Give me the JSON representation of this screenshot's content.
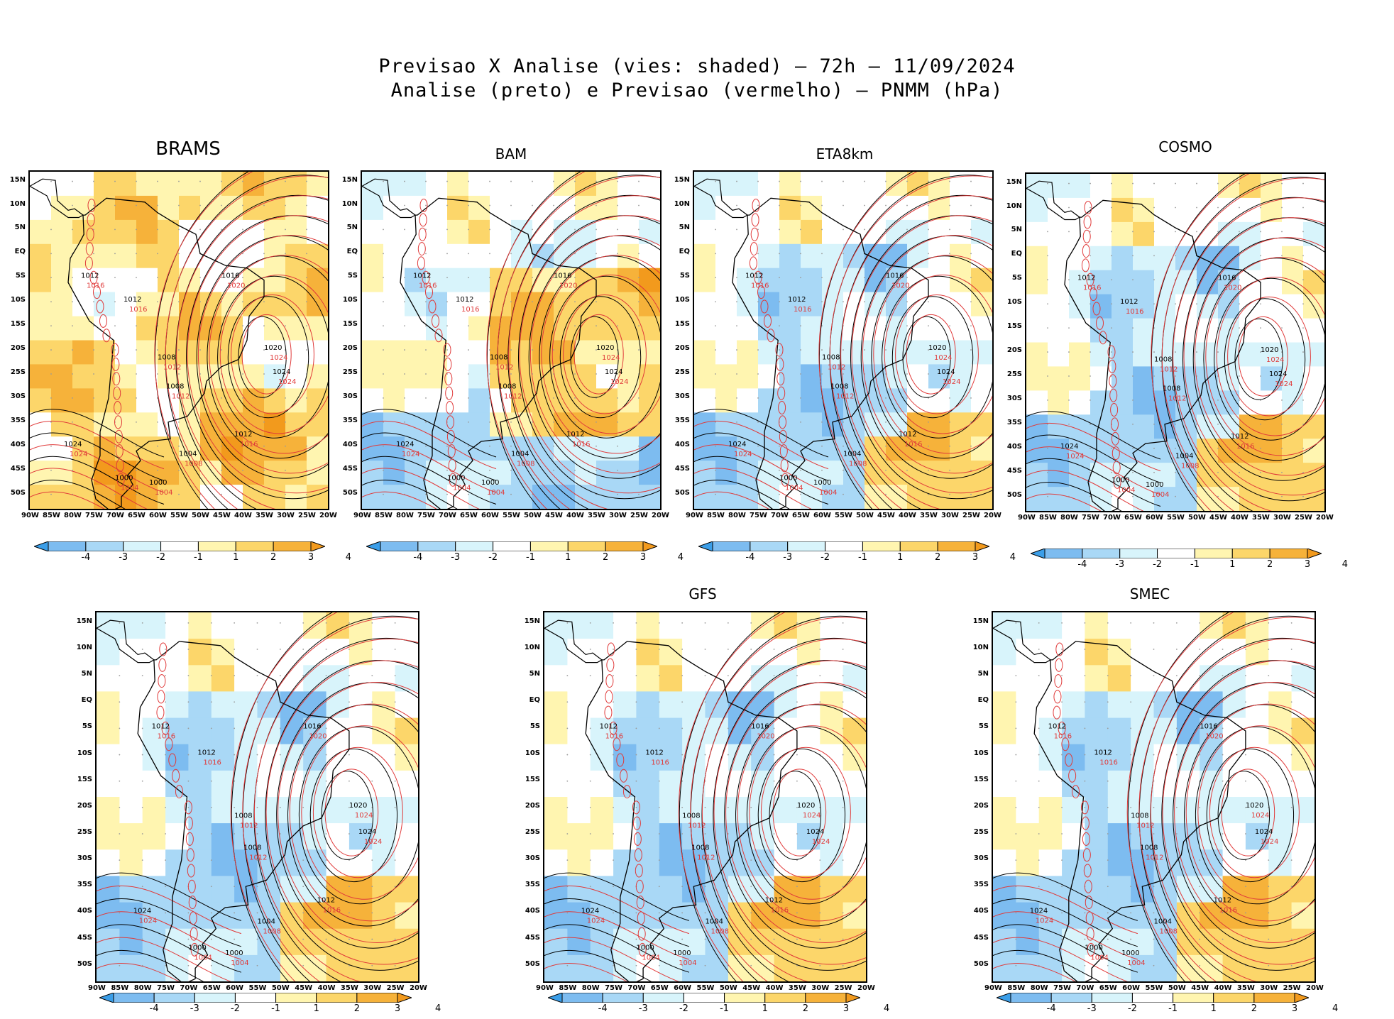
{
  "header": {
    "line1": "Previsao X Analise (vies: shaded) – 72h – 11/09/2024",
    "line2": "Analise (preto) e Previsao (vermelho) – PNMM (hPa)"
  },
  "panels": [
    {
      "id": "brams",
      "title": "BRAMS",
      "bias": "warm"
    },
    {
      "id": "bam",
      "title": "BAM",
      "bias": "mixed"
    },
    {
      "id": "eta8km",
      "title": "ETA8km",
      "bias": "cool"
    },
    {
      "id": "cosmo",
      "title": "COSMO",
      "bias": "cool"
    },
    {
      "id": "unnamed",
      "title": "",
      "bias": "cool"
    },
    {
      "id": "gfs",
      "title": "GFS",
      "bias": "cool"
    },
    {
      "id": "smec",
      "title": "SMEC",
      "bias": "cool"
    }
  ],
  "lat_labels": [
    "15N",
    "10N",
    "5N",
    "EQ",
    "5S",
    "10S",
    "15S",
    "20S",
    "25S",
    "30S",
    "35S",
    "40S",
    "45S",
    "50S"
  ],
  "lon_labels": [
    "90W",
    "85W",
    "80W",
    "75W",
    "70W",
    "65W",
    "60W",
    "55W",
    "50W",
    "45W",
    "40W",
    "35W",
    "30W",
    "25W",
    "20W"
  ],
  "colorbar": {
    "labels": [
      "-4",
      "-3",
      "-2",
      "-1",
      "1",
      "2",
      "3",
      "4"
    ],
    "colors": [
      "#3b9ee8",
      "#7dbcf0",
      "#a9d8f6",
      "#d8f4fb",
      "#ffffff",
      "#fff5b0",
      "#fcd66a",
      "#f6b23a",
      "#f29a1d"
    ]
  },
  "isobar_labels": [
    "1000",
    "1004",
    "1008",
    "1012",
    "1016",
    "1020",
    "1024"
  ],
  "colors": {
    "analysis": "#000000",
    "forecast": "#e03a3a",
    "coast": "#000000"
  }
}
